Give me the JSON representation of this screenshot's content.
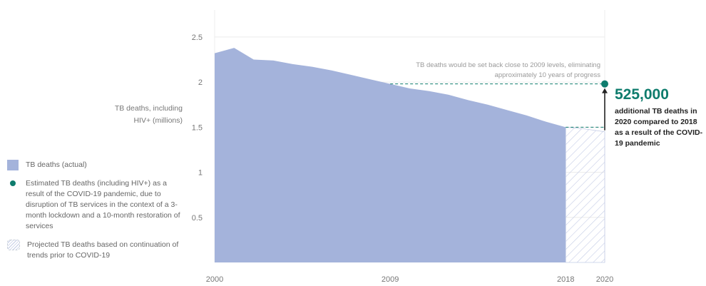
{
  "chart_data": {
    "type": "area",
    "ylabel": "TB deaths, including HIV+ (millions)",
    "ylim": [
      0,
      2.8
    ],
    "yticks": [
      0.5,
      1,
      1.5,
      2,
      2.5
    ],
    "xlim": [
      2000,
      2020
    ],
    "xticks": [
      2000,
      2009,
      2018,
      2020
    ],
    "series": [
      {
        "name": "TB deaths (actual)",
        "x": [
          2000,
          2001,
          2002,
          2003,
          2004,
          2005,
          2006,
          2007,
          2008,
          2009,
          2010,
          2011,
          2012,
          2013,
          2014,
          2015,
          2016,
          2017,
          2018
        ],
        "values": [
          2.32,
          2.38,
          2.25,
          2.24,
          2.2,
          2.17,
          2.13,
          2.08,
          2.03,
          1.98,
          1.93,
          1.9,
          1.86,
          1.8,
          1.75,
          1.69,
          1.63,
          1.56,
          1.5
        ]
      },
      {
        "name": "Projected TB deaths based on continuation of trends prior to COVID-19",
        "x": [
          2018,
          2019,
          2020
        ],
        "values": [
          1.5,
          1.48,
          1.45
        ]
      }
    ],
    "estimated_point": {
      "x": 2020,
      "y": 1.98
    },
    "reference_level": 1.98,
    "annotation": {
      "value": "525,000",
      "text": "additional TB deaths in 2020 compared to 2018 as a result of the COVID-19 pandemic",
      "note": "TB deaths would be set back close to 2009 levels, eliminating approximately 10 years of progress"
    },
    "legend": [
      {
        "key": "actual",
        "label": "TB deaths (actual)"
      },
      {
        "key": "estimated",
        "label": "Estimated TB deaths (including HIV+) as a result of the COVID-19 pandemic, due to disruption of TB services in the context of a 3-month lockdown and a 10-month restoration of services"
      },
      {
        "key": "projected",
        "label": "Projected TB deaths based on continuation of trends prior to COVID-19"
      }
    ],
    "colors": {
      "actual": "#a4b3db",
      "estimated": "#0e7c6d",
      "hatch": "#c4cce6",
      "grid": "#ececec"
    }
  }
}
